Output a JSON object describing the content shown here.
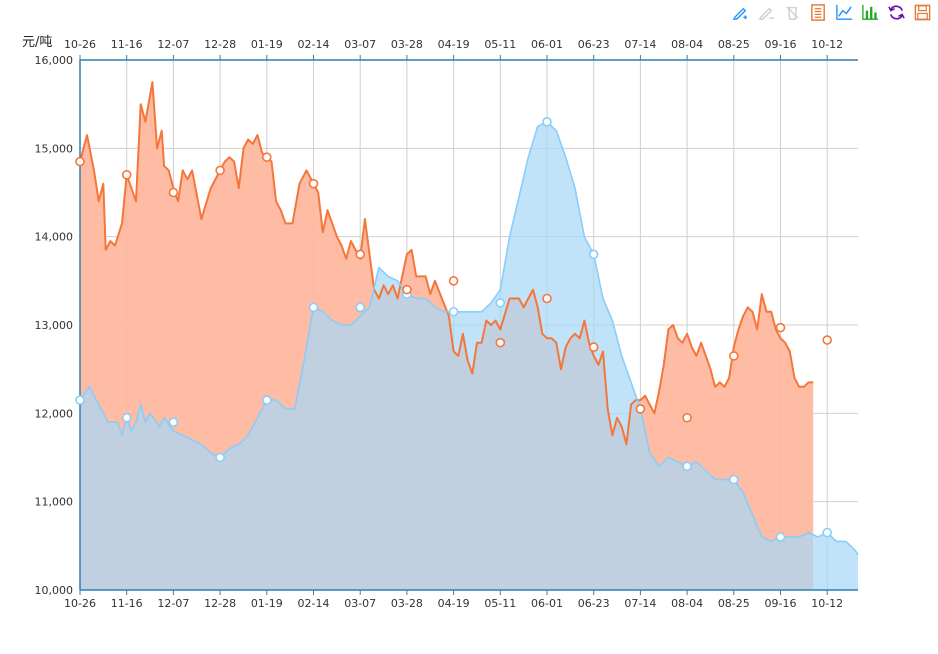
{
  "toolbox": [
    {
      "name": "mark-pen-icon",
      "color": "#1e90ff",
      "enabled": true
    },
    {
      "name": "mark-undo-icon",
      "color": "#cccccc",
      "enabled": false
    },
    {
      "name": "mark-clear-icon",
      "color": "#cccccc",
      "enabled": false
    },
    {
      "name": "data-view-icon",
      "color": "#e07b39",
      "enabled": true
    },
    {
      "name": "line-chart-icon",
      "color": "#1e90ff",
      "enabled": true
    },
    {
      "name": "bar-chart-icon",
      "color": "#22aa22",
      "enabled": true
    },
    {
      "name": "restore-icon",
      "color": "#6a0dad",
      "enabled": true
    },
    {
      "name": "save-image-icon",
      "color": "#e07b39",
      "enabled": true
    }
  ],
  "chart_data": {
    "type": "area",
    "unit_label": "元/吨",
    "xlabel": "",
    "ylabel": "元/吨",
    "ylim": [
      10000,
      16000
    ],
    "y_ticks": [
      "10,000",
      "11,000",
      "12,000",
      "13,000",
      "14,000",
      "15,000",
      "16,000"
    ],
    "x_ticks": [
      "10-26",
      "11-16",
      "12-07",
      "12-28",
      "01-19",
      "02-14",
      "03-07",
      "03-28",
      "04-19",
      "05-11",
      "06-01",
      "06-23",
      "07-14",
      "08-04",
      "08-25",
      "09-16",
      "10-12"
    ],
    "grid": true,
    "colors": {
      "series_a": "#f4763a",
      "series_b": "#87cefa",
      "overlap": "#d4b0a4",
      "axis": "#2f7fb5"
    },
    "series": [
      {
        "name": "",
        "color": "#f4763a",
        "values": [
          [
            0,
            14850
          ],
          [
            0.15,
            15150
          ],
          [
            0.3,
            14750
          ],
          [
            0.4,
            14400
          ],
          [
            0.5,
            14600
          ],
          [
            0.55,
            13850
          ],
          [
            0.65,
            13950
          ],
          [
            0.75,
            13900
          ],
          [
            0.9,
            14150
          ],
          [
            1.0,
            14700
          ],
          [
            1.1,
            14550
          ],
          [
            1.2,
            14400
          ],
          [
            1.3,
            15500
          ],
          [
            1.4,
            15300
          ],
          [
            1.55,
            15750
          ],
          [
            1.65,
            15000
          ],
          [
            1.75,
            15200
          ],
          [
            1.8,
            14800
          ],
          [
            1.9,
            14750
          ],
          [
            2.0,
            14550
          ],
          [
            2.1,
            14400
          ],
          [
            2.2,
            14750
          ],
          [
            2.3,
            14650
          ],
          [
            2.4,
            14750
          ],
          [
            2.6,
            14200
          ],
          [
            2.8,
            14550
          ],
          [
            3.0,
            14750
          ],
          [
            3.1,
            14850
          ],
          [
            3.2,
            14900
          ],
          [
            3.3,
            14850
          ],
          [
            3.4,
            14550
          ],
          [
            3.5,
            15000
          ],
          [
            3.6,
            15100
          ],
          [
            3.7,
            15050
          ],
          [
            3.8,
            15150
          ],
          [
            3.9,
            14950
          ],
          [
            4.0,
            14900
          ],
          [
            4.1,
            14850
          ],
          [
            4.2,
            14400
          ],
          [
            4.3,
            14300
          ],
          [
            4.4,
            14150
          ],
          [
            4.55,
            14150
          ],
          [
            4.7,
            14600
          ],
          [
            4.85,
            14750
          ],
          [
            5.0,
            14600
          ],
          [
            5.1,
            14500
          ],
          [
            5.2,
            14050
          ],
          [
            5.3,
            14300
          ],
          [
            5.5,
            14000
          ],
          [
            5.6,
            13900
          ],
          [
            5.7,
            13750
          ],
          [
            5.8,
            13950
          ],
          [
            6.0,
            13750
          ],
          [
            6.1,
            14200
          ],
          [
            6.2,
            13800
          ],
          [
            6.3,
            13400
          ],
          [
            6.4,
            13300
          ],
          [
            6.5,
            13450
          ],
          [
            6.6,
            13350
          ],
          [
            6.7,
            13450
          ],
          [
            6.8,
            13300
          ],
          [
            6.9,
            13550
          ],
          [
            7.0,
            13800
          ],
          [
            7.1,
            13850
          ],
          [
            7.2,
            13550
          ],
          [
            7.4,
            13550
          ],
          [
            7.5,
            13350
          ],
          [
            7.6,
            13500
          ],
          [
            7.75,
            13300
          ],
          [
            7.9,
            13100
          ],
          [
            8.0,
            12700
          ],
          [
            8.1,
            12650
          ],
          [
            8.2,
            12900
          ],
          [
            8.3,
            12600
          ],
          [
            8.4,
            12450
          ],
          [
            8.5,
            12800
          ],
          [
            8.6,
            12800
          ],
          [
            8.7,
            13050
          ],
          [
            8.8,
            13000
          ],
          [
            8.9,
            13050
          ],
          [
            9.0,
            12950
          ],
          [
            9.2,
            13300
          ],
          [
            9.4,
            13300
          ],
          [
            9.5,
            13200
          ],
          [
            9.6,
            13300
          ],
          [
            9.7,
            13400
          ],
          [
            9.8,
            13200
          ],
          [
            9.9,
            12900
          ],
          [
            10.0,
            12850
          ],
          [
            10.1,
            12850
          ],
          [
            10.2,
            12800
          ],
          [
            10.3,
            12500
          ],
          [
            10.4,
            12750
          ],
          [
            10.5,
            12850
          ],
          [
            10.6,
            12900
          ],
          [
            10.7,
            12850
          ],
          [
            10.8,
            13050
          ],
          [
            10.9,
            12800
          ],
          [
            11.0,
            12650
          ],
          [
            11.1,
            12550
          ],
          [
            11.2,
            12700
          ],
          [
            11.3,
            12050
          ],
          [
            11.4,
            11750
          ],
          [
            11.5,
            11950
          ],
          [
            11.6,
            11850
          ],
          [
            11.7,
            11650
          ],
          [
            11.8,
            12100
          ],
          [
            11.9,
            12150
          ],
          [
            12.0,
            12150
          ],
          [
            12.1,
            12200
          ],
          [
            12.2,
            12100
          ],
          [
            12.3,
            12000
          ],
          [
            12.4,
            12250
          ],
          [
            12.5,
            12550
          ],
          [
            12.6,
            12950
          ],
          [
            12.7,
            13000
          ],
          [
            12.8,
            12850
          ],
          [
            12.9,
            12800
          ],
          [
            13.0,
            12900
          ],
          [
            13.1,
            12750
          ],
          [
            13.2,
            12650
          ],
          [
            13.3,
            12800
          ],
          [
            13.4,
            12650
          ],
          [
            13.5,
            12500
          ],
          [
            13.6,
            12300
          ],
          [
            13.7,
            12350
          ],
          [
            13.8,
            12300
          ],
          [
            13.9,
            12400
          ],
          [
            14.0,
            12750
          ],
          [
            14.1,
            12950
          ],
          [
            14.2,
            13100
          ],
          [
            14.3,
            13200
          ],
          [
            14.4,
            13150
          ],
          [
            14.5,
            12950
          ],
          [
            14.6,
            13350
          ],
          [
            14.7,
            13150
          ],
          [
            14.8,
            13150
          ],
          [
            14.9,
            12950
          ],
          [
            15.0,
            12850
          ],
          [
            15.1,
            12800
          ],
          [
            15.2,
            12700
          ],
          [
            15.3,
            12400
          ],
          [
            15.4,
            12300
          ],
          [
            15.5,
            12300
          ],
          [
            15.6,
            12350
          ],
          [
            15.7,
            12350
          ]
        ],
        "markers": [
          [
            0,
            14850
          ],
          [
            1.0,
            14700
          ],
          [
            2.0,
            14500
          ],
          [
            3.0,
            14750
          ],
          [
            4.0,
            14900
          ],
          [
            5.0,
            14600
          ],
          [
            6.0,
            13800
          ],
          [
            7.0,
            13400
          ],
          [
            8.0,
            13500
          ],
          [
            9.0,
            12800
          ],
          [
            10.0,
            13300
          ],
          [
            11.0,
            12750
          ],
          [
            12.0,
            12050
          ],
          [
            13.0,
            11950
          ],
          [
            14.0,
            12650
          ],
          [
            15.0,
            12970
          ],
          [
            16.0,
            12830
          ]
        ]
      },
      {
        "name": "",
        "color": "#87cefa",
        "values": [
          [
            0,
            12150
          ],
          [
            0.2,
            12300
          ],
          [
            0.4,
            12100
          ],
          [
            0.6,
            11900
          ],
          [
            0.8,
            11900
          ],
          [
            0.9,
            11750
          ],
          [
            1.0,
            11950
          ],
          [
            1.1,
            11800
          ],
          [
            1.2,
            11900
          ],
          [
            1.3,
            12100
          ],
          [
            1.4,
            11900
          ],
          [
            1.5,
            12000
          ],
          [
            1.7,
            11850
          ],
          [
            1.8,
            11950
          ],
          [
            2.0,
            11800
          ],
          [
            2.2,
            11750
          ],
          [
            2.4,
            11700
          ],
          [
            2.6,
            11650
          ],
          [
            2.8,
            11550
          ],
          [
            3.0,
            11500
          ],
          [
            3.2,
            11600
          ],
          [
            3.4,
            11650
          ],
          [
            3.6,
            11750
          ],
          [
            3.8,
            11950
          ],
          [
            4.0,
            12150
          ],
          [
            4.2,
            12150
          ],
          [
            4.4,
            12050
          ],
          [
            4.6,
            12050
          ],
          [
            4.8,
            12600
          ],
          [
            5.0,
            13200
          ],
          [
            5.2,
            13150
          ],
          [
            5.4,
            13050
          ],
          [
            5.6,
            13000
          ],
          [
            5.8,
            13000
          ],
          [
            6.0,
            13100
          ],
          [
            6.2,
            13200
          ],
          [
            6.4,
            13650
          ],
          [
            6.6,
            13550
          ],
          [
            6.8,
            13500
          ],
          [
            7.0,
            13350
          ],
          [
            7.2,
            13300
          ],
          [
            7.4,
            13300
          ],
          [
            7.6,
            13200
          ],
          [
            7.8,
            13150
          ],
          [
            8.0,
            13150
          ],
          [
            8.2,
            13150
          ],
          [
            8.4,
            13150
          ],
          [
            8.6,
            13150
          ],
          [
            8.8,
            13250
          ],
          [
            9.0,
            13400
          ],
          [
            9.2,
            14000
          ],
          [
            9.4,
            14450
          ],
          [
            9.6,
            14900
          ],
          [
            9.8,
            15250
          ],
          [
            10.0,
            15300
          ],
          [
            10.2,
            15200
          ],
          [
            10.4,
            14900
          ],
          [
            10.6,
            14550
          ],
          [
            10.8,
            14000
          ],
          [
            11.0,
            13800
          ],
          [
            11.2,
            13300
          ],
          [
            11.4,
            13050
          ],
          [
            11.6,
            12650
          ],
          [
            11.8,
            12350
          ],
          [
            12.0,
            12050
          ],
          [
            12.2,
            11550
          ],
          [
            12.4,
            11400
          ],
          [
            12.6,
            11500
          ],
          [
            12.8,
            11450
          ],
          [
            13.0,
            11400
          ],
          [
            13.2,
            11450
          ],
          [
            13.4,
            11350
          ],
          [
            13.6,
            11250
          ],
          [
            13.8,
            11250
          ],
          [
            14.0,
            11250
          ],
          [
            14.2,
            11100
          ],
          [
            14.4,
            10850
          ],
          [
            14.6,
            10600
          ],
          [
            14.8,
            10550
          ],
          [
            15.0,
            10600
          ],
          [
            15.2,
            10600
          ],
          [
            15.4,
            10600
          ],
          [
            15.6,
            10650
          ],
          [
            15.8,
            10600
          ],
          [
            16.0,
            10650
          ],
          [
            16.2,
            10550
          ],
          [
            16.4,
            10550
          ],
          [
            16.6,
            10450
          ],
          [
            16.7,
            10400
          ]
        ],
        "markers": [
          [
            0,
            12150
          ],
          [
            1.0,
            11950
          ],
          [
            2.0,
            11900
          ],
          [
            3.0,
            11500
          ],
          [
            4.0,
            12150
          ],
          [
            5.0,
            13200
          ],
          [
            6.0,
            13200
          ],
          [
            7.0,
            13350
          ],
          [
            8.0,
            13150
          ],
          [
            9.0,
            13250
          ],
          [
            10.0,
            15300
          ],
          [
            11.0,
            13800
          ],
          [
            12.0,
            12050
          ],
          [
            13.0,
            11400
          ],
          [
            14.0,
            11250
          ],
          [
            15.0,
            10600
          ],
          [
            16.0,
            10650
          ]
        ]
      }
    ]
  }
}
